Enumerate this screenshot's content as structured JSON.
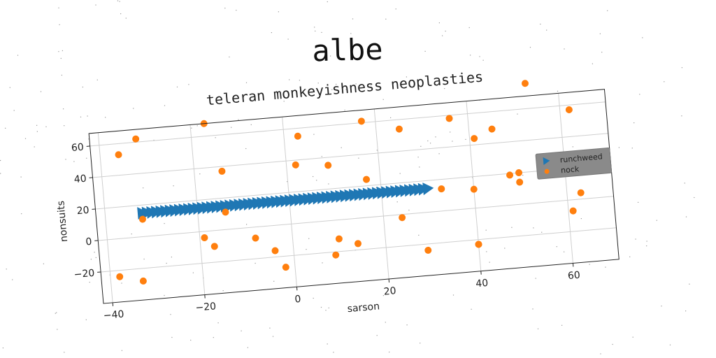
{
  "figure_title": "albe",
  "chart_data": {
    "type": "scatter",
    "title": "teleran monkeyishness neoplasties",
    "xlabel": "sarson",
    "ylabel": "nonsuits",
    "xlim": [
      -42,
      70
    ],
    "ylim": [
      -40,
      68
    ],
    "xticks": [
      -40,
      -20,
      0,
      20,
      40,
      60
    ],
    "yticks": [
      -20,
      0,
      20,
      40,
      60
    ],
    "grid": true,
    "legend_position": "right",
    "series": [
      {
        "name": "runchweed",
        "marker": "triangle-right",
        "color": "#1f77b4",
        "x": [
          -32,
          -31,
          -30,
          -29,
          -28,
          -27,
          -26,
          -25,
          -24,
          -23,
          -22,
          -21,
          -20,
          -19,
          -18,
          -17,
          -16,
          -15,
          -14,
          -13,
          -12,
          -11,
          -10,
          -9,
          -8,
          -7,
          -6,
          -5,
          -4,
          -3,
          -2,
          -1,
          0,
          1,
          2,
          3,
          4,
          5,
          6,
          7,
          8,
          9,
          10,
          11,
          12,
          13,
          14,
          15,
          16,
          17,
          18,
          19,
          20,
          21,
          22,
          23,
          24,
          25,
          26,
          27,
          28,
          29,
          30
        ],
        "y": [
          15,
          15,
          15,
          15,
          15,
          15,
          15,
          15,
          15,
          15,
          15,
          15,
          15,
          15,
          15,
          15,
          15,
          15,
          15,
          15,
          15,
          15,
          15,
          15,
          15,
          15,
          15,
          15,
          15,
          15,
          15,
          15,
          15,
          15,
          15,
          15,
          15,
          15,
          15,
          15,
          15,
          15,
          15,
          15,
          15,
          15,
          15,
          15,
          15,
          15,
          15,
          15,
          15,
          15,
          15,
          15,
          15,
          15,
          15,
          15,
          15,
          15,
          15
        ]
      },
      {
        "name": "nock",
        "marker": "circle",
        "color": "#ff7f0e",
        "x": [
          -36,
          -32,
          -17,
          -14,
          2,
          3,
          9,
          17,
          17,
          25,
          36,
          41,
          45,
          53,
          62,
          -32,
          -14,
          24,
          33,
          40,
          48,
          50,
          50,
          -19,
          -17,
          -8,
          -4,
          -2,
          9,
          10,
          14,
          29,
          40,
          40,
          -38,
          -33,
          61,
          63
        ],
        "y": [
          53,
          62,
          68,
          37,
          37,
          55,
          35,
          61,
          24,
          54,
          58,
          44,
          49,
          76,
          57,
          11,
          11,
          -2,
          14,
          12,
          19,
          20,
          14,
          -4,
          -10,
          -7,
          -16,
          -27,
          -22,
          -12,
          -16,
          -24,
          -23,
          -23,
          -24,
          -28,
          -7,
          4
        ]
      }
    ]
  }
}
